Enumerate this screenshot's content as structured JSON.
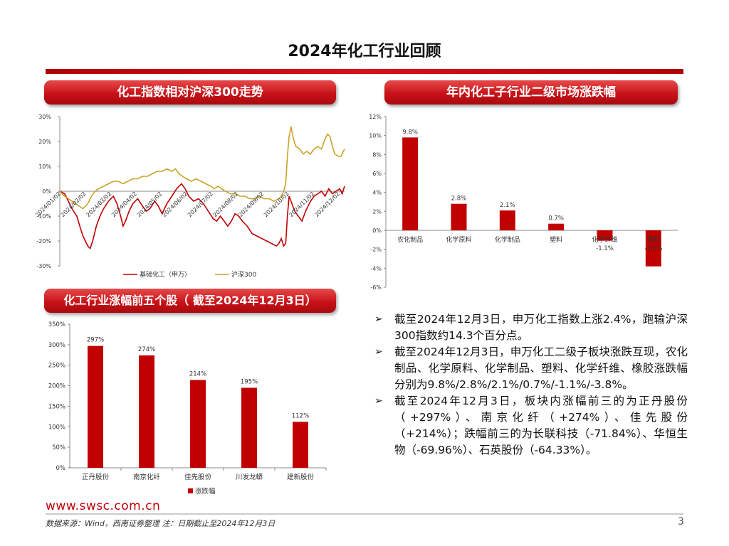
{
  "page": {
    "title": "2024年化工行业回顾",
    "banner_1": "化工指数相对沪深300走势",
    "banner_2": "年内化工子行业二级市场涨跌幅",
    "banner_3": "化工行业涨幅前五个股（ 截至2024年12月3日）",
    "website": "www.swsc.com.cn",
    "source": "数据来源：Wind，西南证券整理 注：日期截止至2024年12月3日",
    "page_number": "3"
  },
  "colors": {
    "red": "#c00000",
    "gold": "#c9a227",
    "accent": "#c81218"
  },
  "bullets": [
    "截至2024年12月3日，申万化工指数上涨2.4%，跑输沪深300指数约14.3个百分点。",
    "截至2024年12月3日，申万化工二级子板块涨跌互现，农化制品、化学原料、化学制品、塑料、化学纤维、橡胶涨跌幅分别为9.8%/2.8%/2.1%/0.7%/-1.1%/-3.8%。",
    "截至2024年12月3日，板块内涨幅前三的为正丹股份（+297%）、南京化纤（+274%）、佳先股份（+214%）；跌幅前三的为长联科技（-71.84%）、华恒生物（-69.96%）、石英股份（-64.33%）。"
  ],
  "chart_data": [
    {
      "type": "line",
      "title": "化工指数相对沪深300走势",
      "ylim": [
        -30,
        30
      ],
      "y_ticks": [
        "30%",
        "20%",
        "10%",
        "0%",
        "-10%",
        "-20%",
        "-30%"
      ],
      "x_ticks": [
        "2024/01/02",
        "2024/02/02",
        "2024/03/02",
        "2024/04/02",
        "2024/05/02",
        "2024/06/02",
        "2024/07/02",
        "2024/08/02",
        "2024/09/02",
        "2024/10/02",
        "2024/11/02",
        "2024/12/02"
      ],
      "series": [
        {
          "name": "基础化工（申万）",
          "color": "#c00000",
          "points": [
            [
              0,
              0
            ],
            [
              0.2,
              -1
            ],
            [
              0.35,
              -4
            ],
            [
              0.5,
              -7
            ],
            [
              0.7,
              -10
            ],
            [
              0.85,
              -15
            ],
            [
              0.95,
              -18
            ],
            [
              1.05,
              -20
            ],
            [
              1.15,
              -22
            ],
            [
              1.25,
              -23
            ],
            [
              1.35,
              -20
            ],
            [
              1.5,
              -14
            ],
            [
              1.65,
              -10
            ],
            [
              1.8,
              -7
            ],
            [
              2.0,
              -4
            ],
            [
              2.2,
              -2
            ],
            [
              2.35,
              -5
            ],
            [
              2.5,
              -10
            ],
            [
              2.6,
              -14
            ],
            [
              2.7,
              -12
            ],
            [
              2.85,
              -8
            ],
            [
              3.0,
              -5
            ],
            [
              3.2,
              -3
            ],
            [
              3.4,
              -6
            ],
            [
              3.55,
              -8
            ],
            [
              3.7,
              -7
            ],
            [
              3.9,
              -4
            ],
            [
              4.05,
              -6
            ],
            [
              4.2,
              -9
            ],
            [
              4.4,
              -5
            ],
            [
              4.6,
              -2
            ],
            [
              4.8,
              1
            ],
            [
              5.0,
              3
            ],
            [
              5.15,
              1
            ],
            [
              5.3,
              -2
            ],
            [
              5.5,
              -4
            ],
            [
              5.7,
              -3
            ],
            [
              5.9,
              -5
            ],
            [
              6.1,
              -8
            ],
            [
              6.3,
              -11
            ],
            [
              6.45,
              -12
            ],
            [
              6.6,
              -10
            ],
            [
              6.75,
              -12
            ],
            [
              6.9,
              -14
            ],
            [
              7.05,
              -12
            ],
            [
              7.2,
              -9
            ],
            [
              7.35,
              -10
            ],
            [
              7.5,
              -12
            ],
            [
              7.7,
              -14
            ],
            [
              7.9,
              -17
            ],
            [
              8.1,
              -18
            ],
            [
              8.3,
              -19
            ],
            [
              8.5,
              -20
            ],
            [
              8.7,
              -21
            ],
            [
              8.9,
              -22
            ],
            [
              9.0,
              -21
            ],
            [
              9.1,
              -19
            ],
            [
              9.2,
              -22
            ],
            [
              9.28,
              -21
            ],
            [
              9.35,
              -10
            ],
            [
              9.42,
              -2
            ],
            [
              9.5,
              -4
            ],
            [
              9.65,
              -8
            ],
            [
              9.8,
              -10
            ],
            [
              9.95,
              -12
            ],
            [
              10.1,
              -8
            ],
            [
              10.3,
              -4
            ],
            [
              10.45,
              -2
            ],
            [
              10.6,
              -1
            ],
            [
              10.75,
              0
            ],
            [
              10.9,
              -2
            ],
            [
              11.05,
              1
            ],
            [
              11.2,
              -1
            ],
            [
              11.35,
              0
            ],
            [
              11.5,
              1
            ],
            [
              11.6,
              -1
            ],
            [
              11.7,
              2
            ]
          ]
        },
        {
          "name": "沪深300",
          "color": "#c9a227",
          "points": [
            [
              0,
              0
            ],
            [
              0.2,
              -2
            ],
            [
              0.35,
              -3
            ],
            [
              0.5,
              -4
            ],
            [
              0.65,
              -5
            ],
            [
              0.8,
              -6
            ],
            [
              0.95,
              -7
            ],
            [
              1.05,
              -6
            ],
            [
              1.15,
              -5
            ],
            [
              1.3,
              -2
            ],
            [
              1.45,
              0
            ],
            [
              1.6,
              1
            ],
            [
              1.8,
              2
            ],
            [
              2.0,
              3
            ],
            [
              2.2,
              4
            ],
            [
              2.4,
              4
            ],
            [
              2.6,
              3
            ],
            [
              2.8,
              4
            ],
            [
              3.0,
              5
            ],
            [
              3.2,
              5
            ],
            [
              3.4,
              6
            ],
            [
              3.6,
              6
            ],
            [
              3.8,
              7
            ],
            [
              4.0,
              8
            ],
            [
              4.2,
              8
            ],
            [
              4.4,
              9
            ],
            [
              4.6,
              8
            ],
            [
              4.75,
              9
            ],
            [
              4.9,
              7
            ],
            [
              5.05,
              6
            ],
            [
              5.2,
              5
            ],
            [
              5.4,
              4
            ],
            [
              5.6,
              5
            ],
            [
              5.8,
              4
            ],
            [
              6.0,
              3
            ],
            [
              6.2,
              2
            ],
            [
              6.35,
              1
            ],
            [
              6.5,
              2
            ],
            [
              6.65,
              1
            ],
            [
              6.8,
              0
            ],
            [
              7.0,
              -1
            ],
            [
              7.2,
              -1
            ],
            [
              7.4,
              -2
            ],
            [
              7.6,
              -2
            ],
            [
              7.8,
              -3
            ],
            [
              8.0,
              -3
            ],
            [
              8.2,
              -2
            ],
            [
              8.4,
              -3
            ],
            [
              8.6,
              -3
            ],
            [
              8.8,
              -4
            ],
            [
              9.0,
              -3
            ],
            [
              9.1,
              -2
            ],
            [
              9.2,
              0
            ],
            [
              9.28,
              3
            ],
            [
              9.35,
              14
            ],
            [
              9.42,
              22
            ],
            [
              9.5,
              26
            ],
            [
              9.6,
              21
            ],
            [
              9.7,
              18
            ],
            [
              9.85,
              17
            ],
            [
              10.0,
              15
            ],
            [
              10.15,
              16
            ],
            [
              10.3,
              15
            ],
            [
              10.45,
              17
            ],
            [
              10.6,
              18
            ],
            [
              10.75,
              17
            ],
            [
              10.9,
              21
            ],
            [
              11.0,
              23
            ],
            [
              11.1,
              22
            ],
            [
              11.2,
              18
            ],
            [
              11.3,
              15
            ],
            [
              11.45,
              14
            ],
            [
              11.55,
              14
            ],
            [
              11.65,
              16
            ],
            [
              11.7,
              17
            ]
          ]
        }
      ],
      "legend": [
        "基础化工（申万）",
        "沪深300"
      ]
    },
    {
      "type": "bar",
      "title": "年内化工子行业二级市场涨跌幅",
      "categories": [
        "农化制品",
        "化学原料",
        "化学制品",
        "塑料",
        "化学纤维",
        "橡胶"
      ],
      "values": [
        9.8,
        2.8,
        2.1,
        0.7,
        -1.1,
        -3.8
      ],
      "labels": [
        "9.8%",
        "2.8%",
        "2.1%",
        "0.7%",
        "-1.1%",
        "-3.8%"
      ],
      "ylim": [
        -6,
        12
      ],
      "y_ticks": [
        "12%",
        "10%",
        "8%",
        "6%",
        "4%",
        "2%",
        "0%",
        "-2%",
        "-4%",
        "-6%"
      ]
    },
    {
      "type": "bar",
      "title": "化工行业涨幅前五个股",
      "categories": [
        "正丹股份",
        "南京化纤",
        "佳先股份",
        "川发龙蟒",
        "建新股份"
      ],
      "values": [
        297,
        274,
        214,
        195,
        112
      ],
      "labels": [
        "297%",
        "274%",
        "214%",
        "195%",
        "112%"
      ],
      "ylim": [
        0,
        350
      ],
      "y_ticks": [
        "350%",
        "300%",
        "250%",
        "200%",
        "150%",
        "100%",
        "50%",
        "0%"
      ],
      "legend": [
        "涨跌幅"
      ]
    }
  ]
}
